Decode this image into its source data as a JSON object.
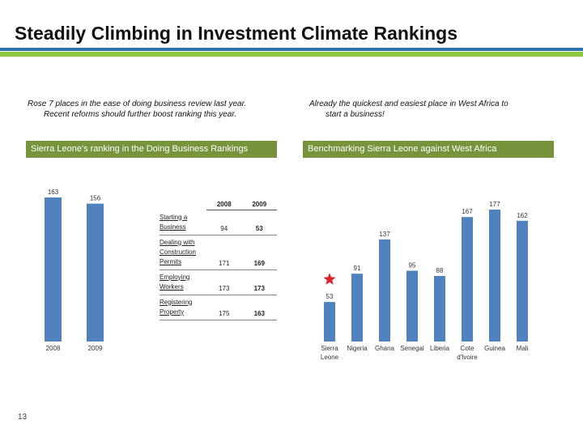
{
  "slide": {
    "title": "Steadily Climbing in Investment Climate Rankings",
    "page_number": "13"
  },
  "left": {
    "caption_line1": "Rose 7 places in the ease of doing business review last year.",
    "caption_line2": "Recent reforms should further boost ranking this year.",
    "banner": "Sierra Leone's ranking in the Doing Business Rankings"
  },
  "right": {
    "caption_line1": "Already the quickest and easiest place in West Africa to",
    "caption_line2": "start a business!",
    "banner": "Benchmarking Sierra Leone against West Africa"
  },
  "table": {
    "headers": [
      "",
      "2008",
      "2009"
    ],
    "rows": [
      {
        "label": "Starting a Business",
        "v2008": "94",
        "v2009": "53"
      },
      {
        "label": "Dealing with Construction Permits",
        "v2008": "171",
        "v2009": "169"
      },
      {
        "label": "Employing Workers",
        "v2008": "173",
        "v2009": "173"
      },
      {
        "label": "Registering Property",
        "v2008": "175",
        "v2009": "163"
      }
    ]
  },
  "colors": {
    "bar": "#4f81bd",
    "banner": "#77933c",
    "star": "#e0202a",
    "rule_blue": "#2f6fb0",
    "rule_green": "#8dc63f"
  },
  "chart_data": [
    {
      "type": "bar",
      "title": "Sierra Leone's ranking in the Doing Business Rankings",
      "categories": [
        "2008",
        "2009"
      ],
      "values": [
        163,
        156
      ],
      "value_labels": [
        "163",
        "156"
      ],
      "ylim": [
        0,
        163
      ]
    },
    {
      "type": "bar",
      "title": "Benchmarking Sierra Leone against West Africa",
      "categories": [
        "Sierra Leone",
        "Nigeria",
        "Ghana",
        "Senegal",
        "Liberia",
        "Cote d'Ivoire",
        "Guinea",
        "Mali"
      ],
      "category_lines": [
        [
          "Sierra",
          "Leone"
        ],
        [
          "Nigeria"
        ],
        [
          "Ghana"
        ],
        [
          "Senegal"
        ],
        [
          "Liberia"
        ],
        [
          "Cote",
          "d'Ivoire"
        ],
        [
          "Guinea"
        ],
        [
          "Mali"
        ]
      ],
      "values": [
        53,
        91,
        137,
        95,
        88,
        167,
        177,
        162
      ],
      "value_labels": [
        "53",
        "91",
        "137",
        "95",
        "88",
        "167",
        "177",
        "162"
      ],
      "highlight": "Sierra Leone",
      "ylim": [
        0,
        177
      ]
    }
  ]
}
